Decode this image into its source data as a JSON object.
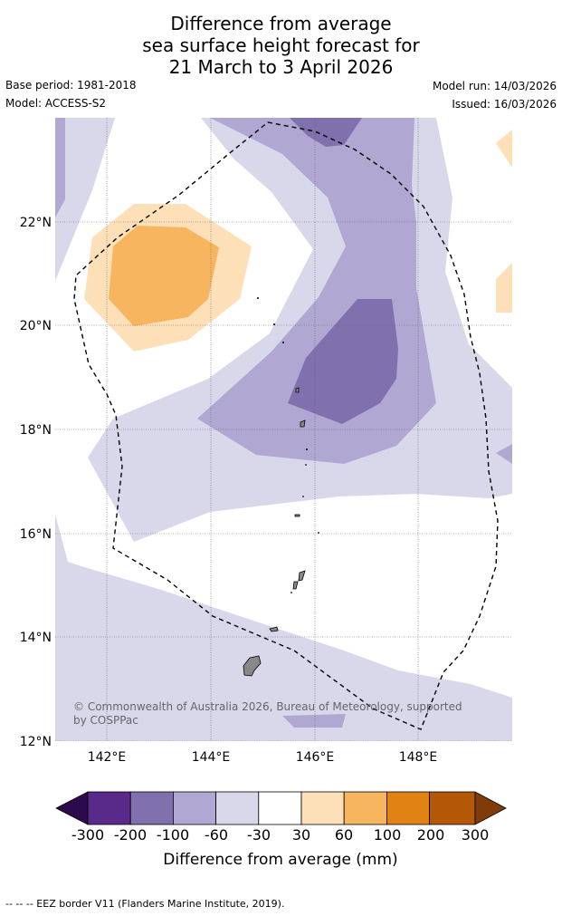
{
  "title": {
    "line1": "Difference from average",
    "line2": "sea surface height forecast for",
    "line3": "21 March to 3 April 2026"
  },
  "meta": {
    "base_period": "Base period: 1981-2018",
    "model": "Model: ACCESS-S2",
    "model_run": "Model run: 14/03/2026",
    "issued": "Issued: 16/03/2026"
  },
  "map": {
    "lat_labels": [
      "22°N",
      "20°N",
      "18°N",
      "16°N",
      "14°N",
      "12°N"
    ],
    "lon_labels": [
      "142°E",
      "144°E",
      "146°E",
      "148°E"
    ],
    "copyright_line1": "© Commonwealth of Australia 2026, Bureau of Meteorology, supported",
    "copyright_line2": "by COSPPac",
    "colors": {
      "neg_300": "#2d0a4e",
      "neg_200": "#5a2a8a",
      "neg_100": "#8070ad",
      "neg_60": "#b0a8d2",
      "neg_30": "#d8d8ea",
      "neutral": "#ffffff",
      "pos_30": "#fde0b8",
      "pos_60": "#f8b560",
      "pos_100": "#e08214",
      "pos_200": "#b35806",
      "pos_300": "#7f3b08",
      "land": "#888888"
    }
  },
  "legend": {
    "ticks": [
      "-300",
      "-200",
      "-100",
      "-60",
      "-30",
      "30",
      "60",
      "100",
      "200",
      "300"
    ],
    "label": "Difference from average (mm)"
  },
  "footer": "--  --  -- EEZ border V11 (Flanders Marine Institute, 2019)."
}
